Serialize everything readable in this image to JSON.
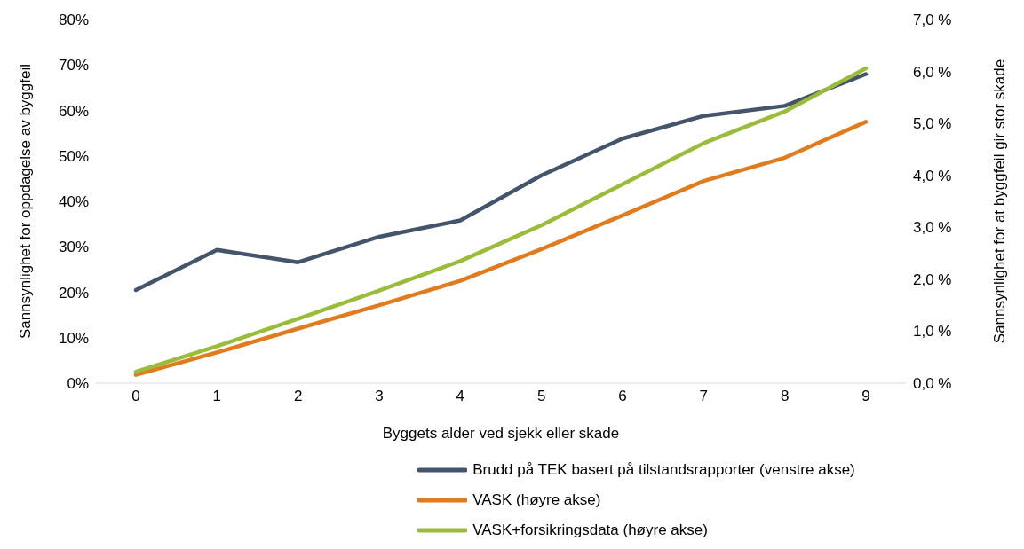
{
  "chart_data": {
    "type": "line",
    "xlabel": "Byggets alder ved sjekk eller skade",
    "ylabel": "Sannsynlighet for oppdagelse av byggfeil",
    "y2label": "Sannsynlighet for at byggfeil gir stor skade",
    "categories": [
      "0",
      "1",
      "2",
      "3",
      "4",
      "5",
      "6",
      "7",
      "8",
      "9"
    ],
    "series": [
      {
        "name": "Brudd på TEK basert på tilstandsrapporter (venstre akse)",
        "color": "#44546a",
        "values": [
          20.5,
          29.3,
          26.6,
          32.2,
          35.8,
          45.7,
          53.8,
          58.8,
          61.0,
          68.0
        ]
      },
      {
        "name": "VASK (høyre akse)",
        "color": "#e07b1f",
        "axis": "y2",
        "values": [
          0.16,
          0.59,
          1.05,
          1.5,
          1.97,
          2.58,
          3.23,
          3.89,
          4.34,
          5.03
        ]
      },
      {
        "name": "VASK+forsikringsdata (høyre akse)",
        "color": "#9bbb3b",
        "axis": "y2",
        "values": [
          0.22,
          0.71,
          1.24,
          1.78,
          2.35,
          3.04,
          3.83,
          4.62,
          5.23,
          6.06
        ]
      }
    ],
    "ylim": [
      0,
      80
    ],
    "yticks": [
      {
        "value": 0,
        "label": "0%"
      },
      {
        "value": 10,
        "label": "10%"
      },
      {
        "value": 20,
        "label": "20%"
      },
      {
        "value": 30,
        "label": "30%"
      },
      {
        "value": 40,
        "label": "40%"
      },
      {
        "value": 50,
        "label": "50%"
      },
      {
        "value": 60,
        "label": "60%"
      },
      {
        "value": 70,
        "label": "70%"
      },
      {
        "value": 80,
        "label": "80%"
      }
    ],
    "y2lim": [
      0,
      7
    ],
    "y2ticks": [
      {
        "value": 0,
        "label": "0,0 %"
      },
      {
        "value": 1,
        "label": "1,0 %"
      },
      {
        "value": 2,
        "label": "2,0 %"
      },
      {
        "value": 3,
        "label": "3,0 %"
      },
      {
        "value": 4,
        "label": "4,0 %"
      },
      {
        "value": 5,
        "label": "5,0 %"
      },
      {
        "value": 6,
        "label": "6,0 %"
      },
      {
        "value": 7,
        "label": "7,0 %"
      }
    ],
    "grid": false,
    "legend": "bottom",
    "marker": "none",
    "line_style": "solid"
  }
}
